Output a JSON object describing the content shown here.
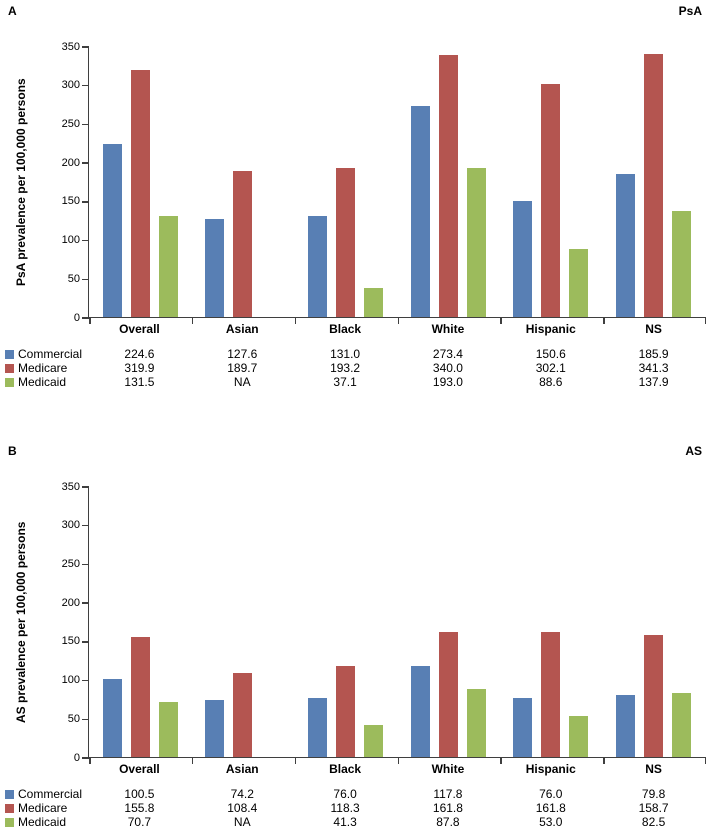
{
  "figure_colors": {
    "commercial": "#587FB4",
    "medicare": "#B45550",
    "medicaid": "#9CBB5C",
    "axis": "#3f3f3f",
    "background": "#ffffff"
  },
  "chart_data": [
    {
      "type": "bar",
      "panel_label": "A",
      "title": "PsA",
      "ylabel": "PsA prevalence per 100,000 persons",
      "xlabel": "",
      "ylim": [
        0,
        350
      ],
      "ytick_step": 50,
      "grid": false,
      "legend_position": "bottom-left-table",
      "categories": [
        "Overall",
        "Asian",
        "Black",
        "White",
        "Hispanic",
        "NS"
      ],
      "series": [
        {
          "name": "Commercial",
          "color": "#587FB4",
          "values": [
            224.6,
            127.6,
            131.0,
            273.4,
            150.6,
            185.9
          ],
          "labels": [
            "224.6",
            "127.6",
            "131.0",
            "273.4",
            "150.6",
            "185.9"
          ]
        },
        {
          "name": "Medicare",
          "color": "#B45550",
          "values": [
            319.9,
            189.7,
            193.2,
            340.0,
            302.1,
            341.3
          ],
          "labels": [
            "319.9",
            "189.7",
            "193.2",
            "340.0",
            "302.1",
            "341.3"
          ]
        },
        {
          "name": "Medicaid",
          "color": "#9CBB5C",
          "values": [
            131.5,
            null,
            37.1,
            193.0,
            88.6,
            137.9
          ],
          "labels": [
            "131.5",
            "NA",
            "37.1",
            "193.0",
            "88.6",
            "137.9"
          ]
        }
      ]
    },
    {
      "type": "bar",
      "panel_label": "B",
      "title": "AS",
      "ylabel": "AS prevalence per 100,000 persons",
      "xlabel": "",
      "ylim": [
        0,
        350
      ],
      "ytick_step": 50,
      "grid": false,
      "legend_position": "bottom-left-table",
      "categories": [
        "Overall",
        "Asian",
        "Black",
        "White",
        "Hispanic",
        "NS"
      ],
      "series": [
        {
          "name": "Commercial",
          "color": "#587FB4",
          "values": [
            100.5,
            74.2,
            76.0,
            117.8,
            76.0,
            79.8
          ],
          "labels": [
            "100.5",
            "74.2",
            "76.0",
            "117.8",
            "76.0",
            "79.8"
          ]
        },
        {
          "name": "Medicare",
          "color": "#B45550",
          "values": [
            155.8,
            108.4,
            118.3,
            161.8,
            161.8,
            158.7
          ],
          "labels": [
            "155.8",
            "108.4",
            "118.3",
            "161.8",
            "161.8",
            "158.7"
          ]
        },
        {
          "name": "Medicaid",
          "color": "#9CBB5C",
          "values": [
            70.7,
            null,
            41.3,
            87.8,
            53.0,
            82.5
          ],
          "labels": [
            "70.7",
            "NA",
            "41.3",
            "87.8",
            "53.0",
            "82.5"
          ]
        }
      ]
    }
  ]
}
